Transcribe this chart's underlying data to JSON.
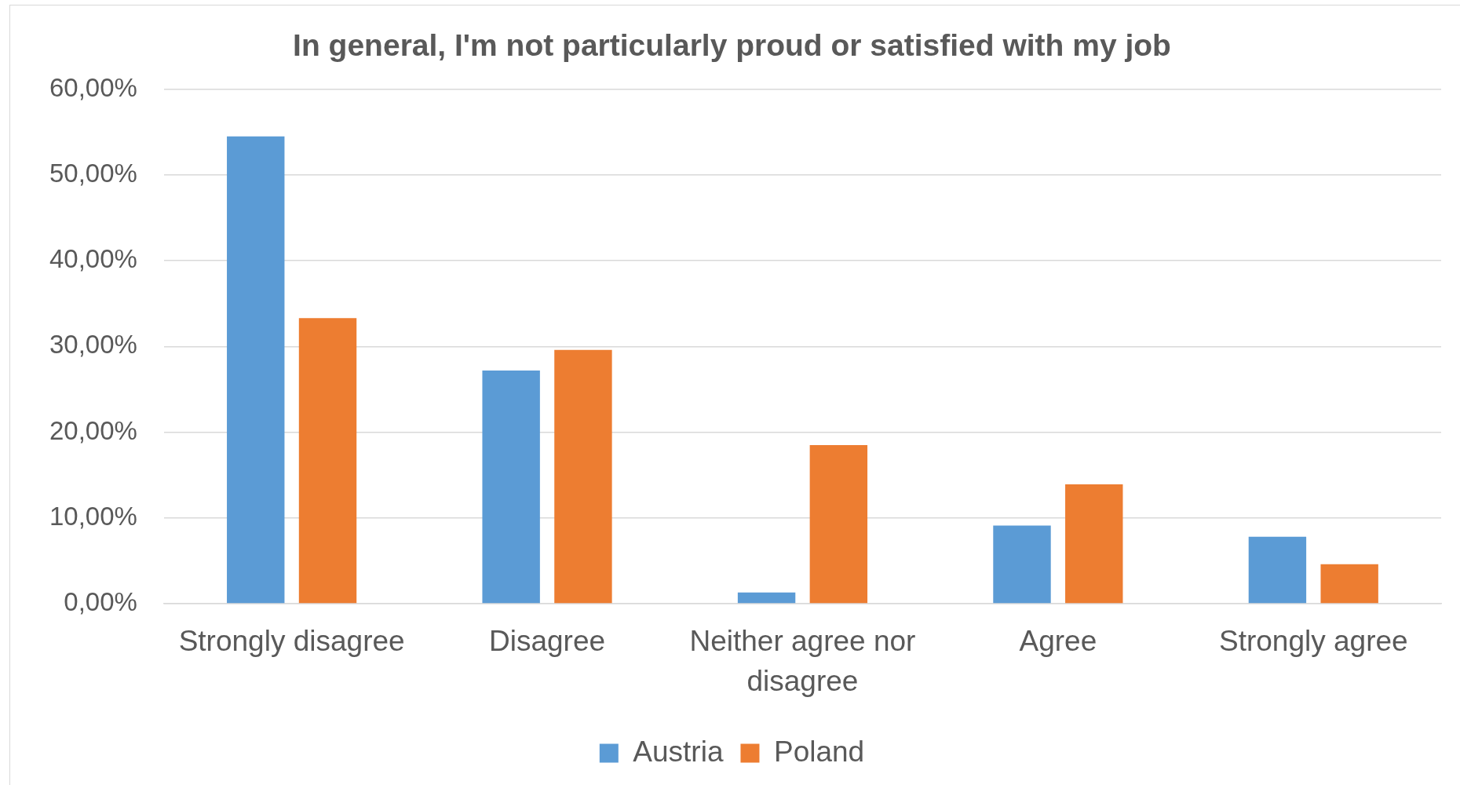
{
  "chart_data": {
    "type": "bar",
    "title": "In general, I'm not particularly proud or satisfied with my job",
    "categories": [
      "Strongly disagree",
      "Disagree",
      "Neither agree nor disagree",
      "Agree",
      "Strongly agree"
    ],
    "series": [
      {
        "name": "Austria",
        "color": "#5b9bd5",
        "values": [
          54.5,
          27.2,
          1.3,
          9.1,
          7.8
        ]
      },
      {
        "name": "Poland",
        "color": "#ed7d31",
        "values": [
          33.3,
          29.6,
          18.5,
          13.9,
          4.6
        ]
      }
    ],
    "ylim": [
      0,
      60
    ],
    "yticks": [
      {
        "value": 0,
        "label": "0,00%"
      },
      {
        "value": 10,
        "label": "10,00%"
      },
      {
        "value": 20,
        "label": "20,00%"
      },
      {
        "value": 30,
        "label": "30,00%"
      },
      {
        "value": 40,
        "label": "40,00%"
      },
      {
        "value": 50,
        "label": "50,00%"
      },
      {
        "value": 60,
        "label": "60,00%"
      }
    ],
    "grid": "y",
    "legend": "bottom"
  }
}
